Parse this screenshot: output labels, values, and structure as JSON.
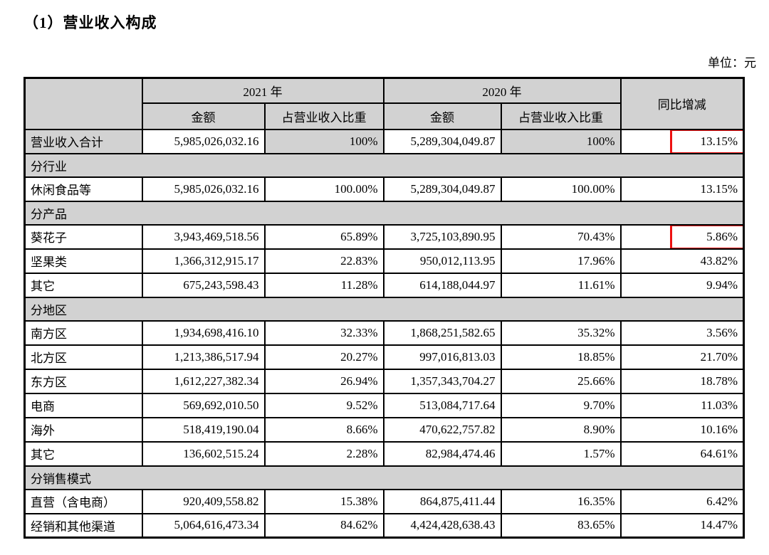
{
  "page": {
    "title": "（1）营业收入构成",
    "unit_label": "单位：元",
    "colors": {
      "cell_shade": "#d2d2d2",
      "highlight_red": "#ee1111",
      "border": "#000000"
    }
  },
  "table": {
    "head": {
      "corner": "",
      "y2021": "2021 年",
      "y2020": "2020 年",
      "yoy": "同比增减",
      "amount": "金额",
      "ratio": "占营业收入比重"
    },
    "rows": [
      {
        "type": "data",
        "label": "营业收入合计",
        "cells": [
          "5,985,026,032.16",
          "100%",
          "5,289,304,049.87",
          "100%",
          "13.15%"
        ],
        "shaded": true,
        "highlight": true
      },
      {
        "type": "section",
        "label": "分行业"
      },
      {
        "type": "data",
        "label": "休闲食品等",
        "cells": [
          "5,985,026,032.16",
          "100.00%",
          "5,289,304,049.87",
          "100.00%",
          "13.15%"
        ]
      },
      {
        "type": "section",
        "label": "分产品"
      },
      {
        "type": "data",
        "label": "葵花子",
        "cells": [
          "3,943,469,518.56",
          "65.89%",
          "3,725,103,890.95",
          "70.43%",
          "5.86%"
        ],
        "highlight": true
      },
      {
        "type": "data",
        "label": "坚果类",
        "cells": [
          "1,366,312,915.17",
          "22.83%",
          "950,012,113.95",
          "17.96%",
          "43.82%"
        ]
      },
      {
        "type": "data",
        "label": "其它",
        "cells": [
          "675,243,598.43",
          "11.28%",
          "614,188,044.97",
          "11.61%",
          "9.94%"
        ]
      },
      {
        "type": "section",
        "label": "分地区"
      },
      {
        "type": "data",
        "label": "南方区",
        "cells": [
          "1,934,698,416.10",
          "32.33%",
          "1,868,251,582.65",
          "35.32%",
          "3.56%"
        ]
      },
      {
        "type": "data",
        "label": "北方区",
        "cells": [
          "1,213,386,517.94",
          "20.27%",
          "997,016,813.03",
          "18.85%",
          "21.70%"
        ]
      },
      {
        "type": "data",
        "label": "东方区",
        "cells": [
          "1,612,227,382.34",
          "26.94%",
          "1,357,343,704.27",
          "25.66%",
          "18.78%"
        ]
      },
      {
        "type": "data",
        "label": "电商",
        "cells": [
          "569,692,010.50",
          "9.52%",
          "513,084,717.64",
          "9.70%",
          "11.03%"
        ]
      },
      {
        "type": "data",
        "label": "海外",
        "cells": [
          "518,419,190.04",
          "8.66%",
          "470,622,757.82",
          "8.90%",
          "10.16%"
        ]
      },
      {
        "type": "data",
        "label": "其它",
        "cells": [
          "136,602,515.24",
          "2.28%",
          "82,984,474.46",
          "1.57%",
          "64.61%"
        ]
      },
      {
        "type": "section",
        "label": "分销售模式"
      },
      {
        "type": "data",
        "label": "直营（含电商）",
        "cells": [
          "920,409,558.82",
          "15.38%",
          "864,875,411.44",
          "16.35%",
          "6.42%"
        ]
      },
      {
        "type": "data",
        "label": "经销和其他渠道",
        "cells": [
          "5,064,616,473.34",
          "84.62%",
          "4,424,428,638.43",
          "83.65%",
          "14.47%"
        ]
      }
    ]
  }
}
